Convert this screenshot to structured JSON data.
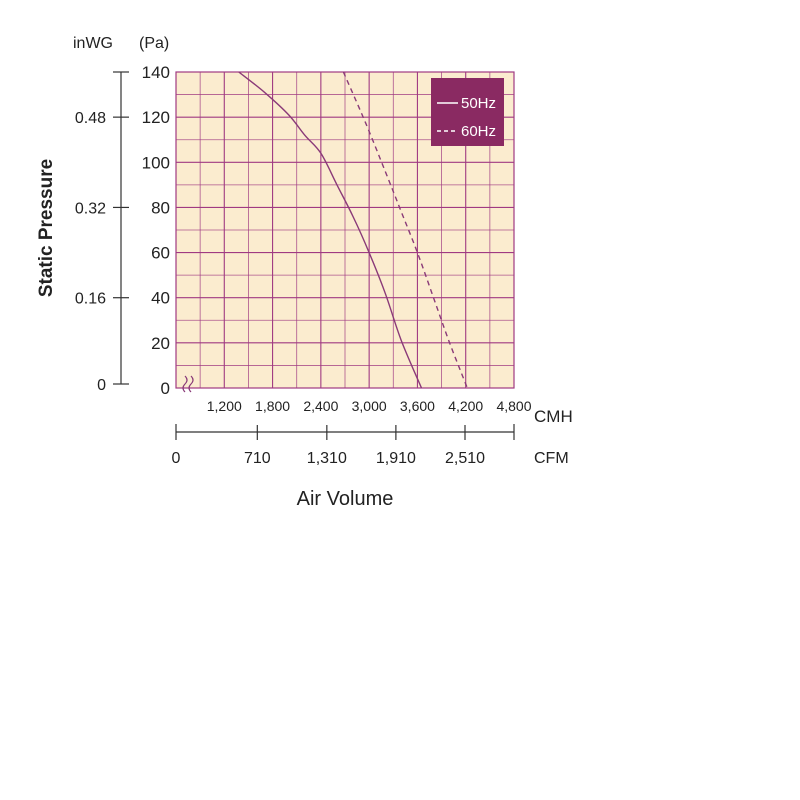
{
  "chart_data": {
    "type": "line",
    "ylabel": "Static Pressure",
    "xlabel": "Air Volume",
    "y_unit_left": "inWG",
    "y_unit_right": "(Pa)",
    "ylim": [
      0,
      140
    ],
    "yticks_pa": [
      "0",
      "20",
      "40",
      "60",
      "80",
      "100",
      "120",
      "140"
    ],
    "yticks_inwg": [
      {
        "label": "0",
        "pa": 0
      },
      {
        "label": "0.16",
        "pa": 40
      },
      {
        "label": "0.32",
        "pa": 80
      },
      {
        "label": "0.48",
        "pa": 120
      }
    ],
    "xlim_cmh": [
      600,
      4800
    ],
    "xticks_cmh": [
      "1,200",
      "1,800",
      "2,400",
      "3,000",
      "3,600",
      "4,200",
      "4,800"
    ],
    "x_unit_cmh": "CMH",
    "xticks_cfm": [
      {
        "label": "0",
        "cmh": 0
      },
      {
        "label": "710",
        "cmh": 1200
      },
      {
        "label": "1,310",
        "cmh": 2226
      },
      {
        "label": "1,910",
        "cmh": 3245
      },
      {
        "label": "2,510",
        "cmh": 4265
      }
    ],
    "x_unit_cfm": "CFM",
    "grid": true,
    "legend_position": "top-right",
    "series": [
      {
        "name": "50Hz",
        "style": "solid",
        "color": "#8a3a78",
        "points": [
          [
            1380,
            140
          ],
          [
            1700,
            131
          ],
          [
            2000,
            121
          ],
          [
            2200,
            112
          ],
          [
            2400,
            104
          ],
          [
            2600,
            90
          ],
          [
            2800,
            76
          ],
          [
            3000,
            60
          ],
          [
            3200,
            42
          ],
          [
            3400,
            21
          ],
          [
            3650,
            0
          ]
        ]
      },
      {
        "name": "60Hz",
        "style": "dashed",
        "color": "#8a3a78",
        "points": [
          [
            2680,
            140
          ],
          [
            2950,
            118
          ],
          [
            3200,
            96
          ],
          [
            3400,
            78
          ],
          [
            3600,
            60
          ],
          [
            3800,
            40
          ],
          [
            4000,
            20
          ],
          [
            4220,
            0
          ]
        ]
      }
    ]
  },
  "colors": {
    "plot_bg": "#fbeccf",
    "grid": "#a03a82",
    "line": "#8a3a78",
    "legend_bg": "#8a2a62",
    "axis": "#333333"
  }
}
